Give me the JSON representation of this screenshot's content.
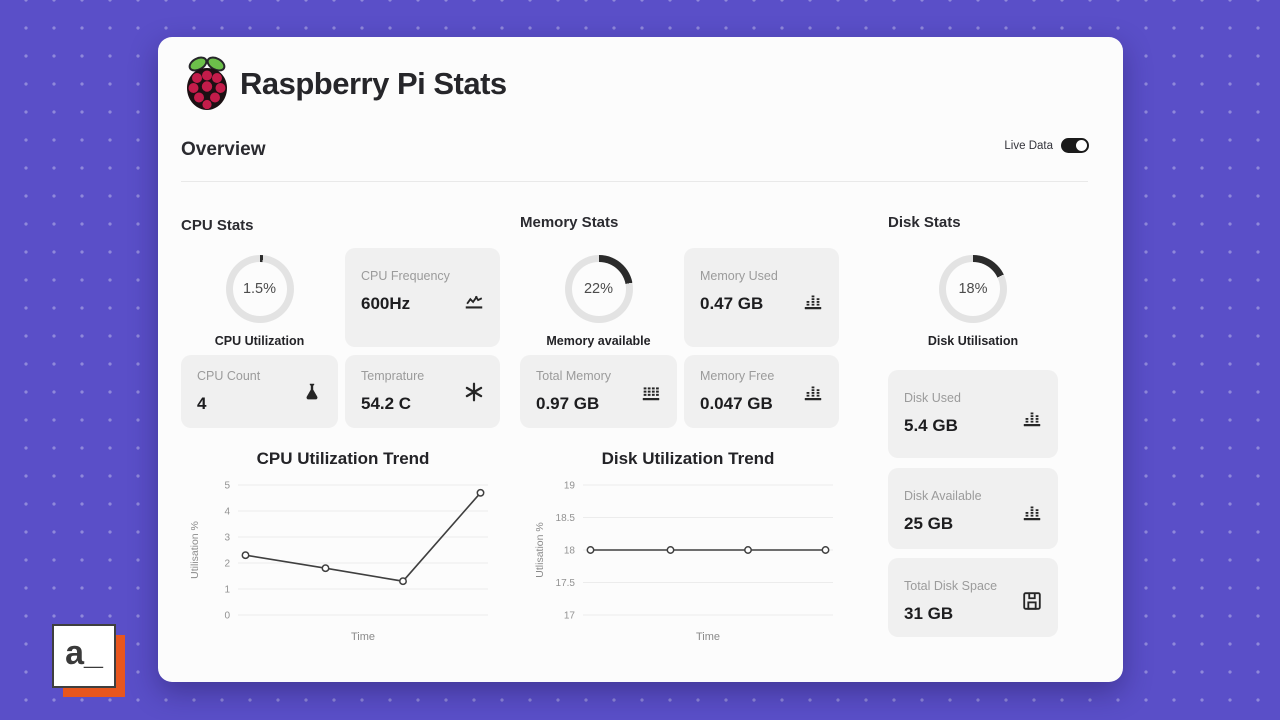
{
  "header": {
    "app_title": "Raspberry Pi Stats",
    "logo": "raspberry-pi-logo"
  },
  "overview": {
    "heading": "Overview",
    "live_data_label": "Live Data",
    "live_data_state": "on"
  },
  "sections": {
    "cpu": {
      "title": "CPU Stats",
      "donut": {
        "percent": 1.5,
        "value_label": "1.5%",
        "caption": "CPU Utilization"
      },
      "cards": [
        {
          "label": "CPU Frequency",
          "value": "600Hz",
          "icon": "line-chart-icon"
        },
        {
          "label": "CPU Count",
          "value": "4",
          "icon": "flask-icon"
        },
        {
          "label": "Temprature",
          "value": "54.2 C",
          "icon": "asterisk-icon"
        }
      ]
    },
    "memory": {
      "title": "Memory Stats",
      "donut": {
        "percent": 22,
        "value_label": "22%",
        "caption": "Memory available"
      },
      "cards": [
        {
          "label": "Memory Used",
          "value": "0.47 GB",
          "icon": "bar-chart-icon"
        },
        {
          "label": "Total Memory",
          "value": "0.97 GB",
          "icon": "memory-grid-icon"
        },
        {
          "label": "Memory Free",
          "value": "0.047 GB",
          "icon": "bar-chart-icon"
        }
      ]
    },
    "disk": {
      "title": "Disk Stats",
      "donut": {
        "percent": 18,
        "value_label": "18%",
        "caption": "Disk Utilisation"
      },
      "cards": [
        {
          "label": "Disk Used",
          "value": "5.4 GB",
          "icon": "bar-chart-icon"
        },
        {
          "label": "Disk Available",
          "value": "25 GB",
          "icon": "bar-chart-icon"
        },
        {
          "label": "Total Disk Space",
          "value": "31 GB",
          "icon": "floppy-icon"
        }
      ]
    }
  },
  "chart_data": [
    {
      "type": "line",
      "title": "CPU Utilization Trend",
      "xlabel": "Time",
      "ylabel": "Utilisation %",
      "ylim": [
        0,
        5
      ],
      "yticks": [
        0,
        1,
        2,
        3,
        4,
        5
      ],
      "x": [
        1,
        2,
        3,
        4
      ],
      "values": [
        2.3,
        1.8,
        1.3,
        4.7
      ],
      "grid": true,
      "legend": false,
      "marker": "open-circle",
      "line_color": "#3f3f3f"
    },
    {
      "type": "line",
      "title": "Disk Utilization Trend",
      "xlabel": "Time",
      "ylabel": "Utlisation %",
      "ylim": [
        17,
        19
      ],
      "yticks": [
        17,
        17.5,
        18,
        18.5,
        19
      ],
      "x": [
        1,
        2,
        3,
        4
      ],
      "values": [
        18,
        18,
        18,
        18
      ],
      "grid": true,
      "legend": false,
      "marker": "open-circle",
      "line_color": "#3f3f3f"
    }
  ],
  "colors": {
    "background": "#5a4fc8",
    "card": "#fcfcfc",
    "stat_card": "#f0f0f0",
    "donut_fill": "#2b2b2b",
    "donut_track": "#e3e3e3",
    "accent_orange": "#e8561e"
  },
  "watermark": {
    "text": "a_"
  }
}
